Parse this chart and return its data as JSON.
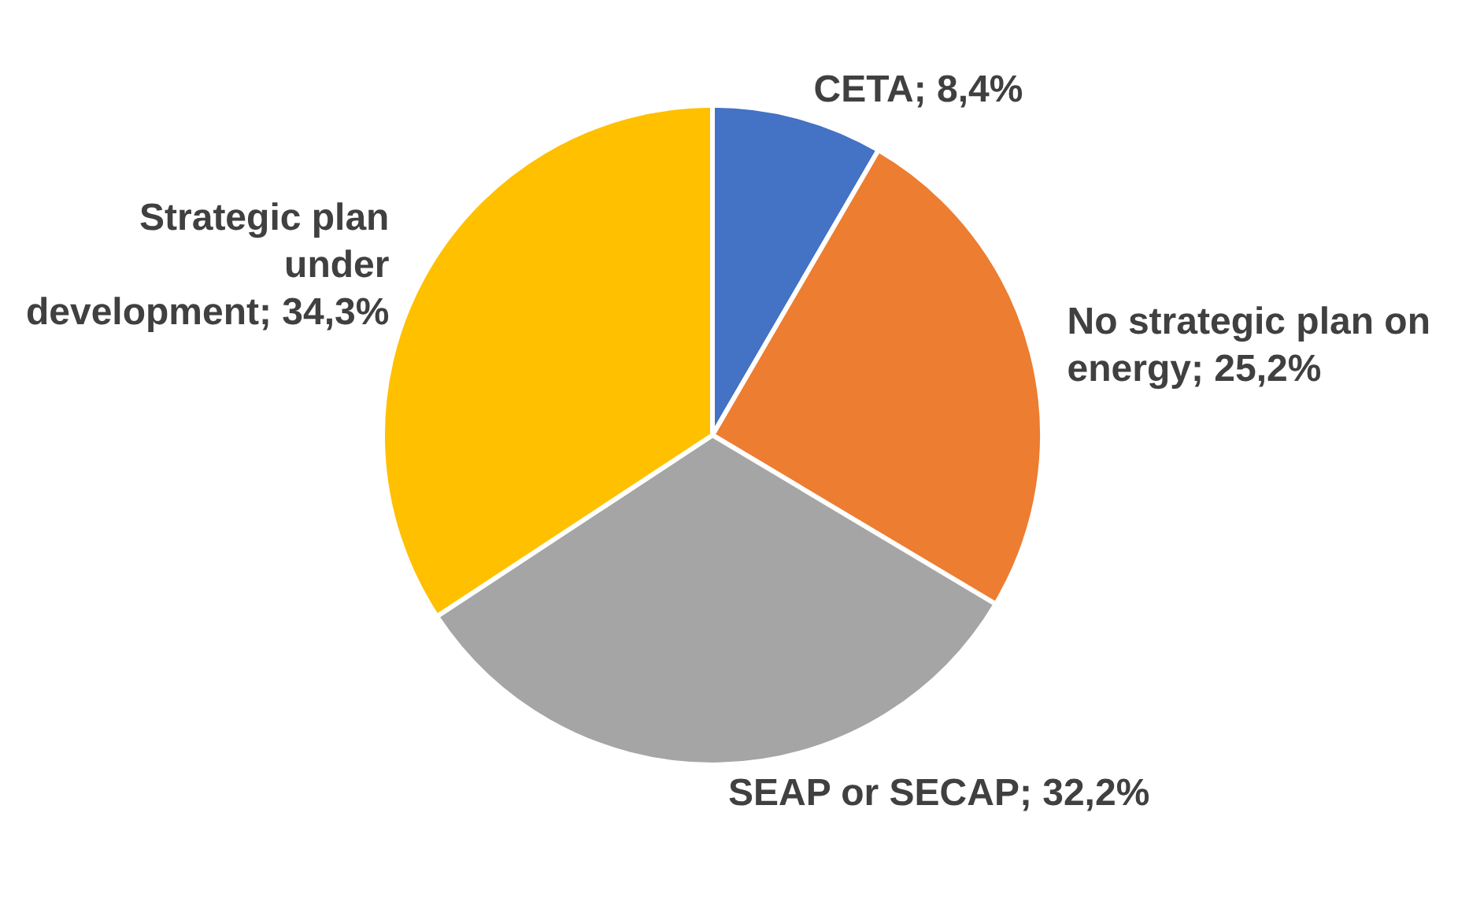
{
  "chart_data": {
    "type": "pie",
    "categories": [
      "CETA",
      "No strategic plan on energy",
      "SEAP or SECAP",
      "Strategic plan under development"
    ],
    "values": [
      8.4,
      25.2,
      32.2,
      34.3
    ],
    "value_labels": [
      "8,4%",
      "25,2%",
      "32,2%",
      "34,3%"
    ],
    "colors": [
      "#4472c4",
      "#ed7d31",
      "#a5a5a5",
      "#ffc000"
    ],
    "legend": false
  }
}
